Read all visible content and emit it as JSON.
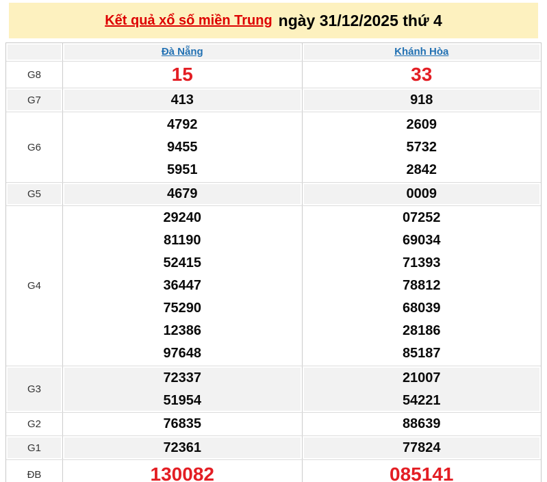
{
  "banner": {
    "title_link": "Kết quả xổ số miền Trung",
    "title_rest": "ngày 31/12/2025 thứ 4",
    "bg_color": "#fdf1bf",
    "link_color": "#dd0000"
  },
  "table": {
    "columns": [
      "Đà Nẵng",
      "Khánh Hòa"
    ],
    "column_link_color": "#2271b3",
    "highlight_color": "#e31e24",
    "shaded_row_color": "#f2f2f2",
    "rows": [
      {
        "label": "G8",
        "values": [
          [
            "15"
          ],
          [
            "33"
          ]
        ]
      },
      {
        "label": "G7",
        "values": [
          [
            "413"
          ],
          [
            "918"
          ]
        ]
      },
      {
        "label": "G6",
        "values": [
          [
            "4792",
            "9455",
            "5951"
          ],
          [
            "2609",
            "5732",
            "2842"
          ]
        ]
      },
      {
        "label": "G5",
        "values": [
          [
            "4679"
          ],
          [
            "0009"
          ]
        ]
      },
      {
        "label": "G4",
        "values": [
          [
            "29240",
            "81190",
            "52415",
            "36447",
            "75290",
            "12386",
            "97648"
          ],
          [
            "07252",
            "69034",
            "71393",
            "78812",
            "68039",
            "28186",
            "85187"
          ]
        ]
      },
      {
        "label": "G3",
        "values": [
          [
            "72337",
            "51954"
          ],
          [
            "21007",
            "54221"
          ]
        ]
      },
      {
        "label": "G2",
        "values": [
          [
            "76835"
          ],
          [
            "88639"
          ]
        ]
      },
      {
        "label": "G1",
        "values": [
          [
            "72361"
          ],
          [
            "77824"
          ]
        ]
      },
      {
        "label": "ĐB",
        "values": [
          [
            "130082"
          ],
          [
            "085141"
          ]
        ]
      }
    ]
  }
}
